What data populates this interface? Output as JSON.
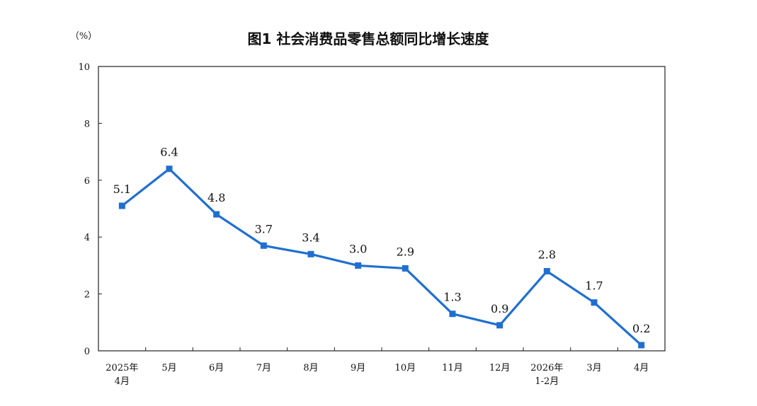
{
  "chart_data": {
    "type": "line",
    "title": "图1  社会消费品零售总额同比增长速度",
    "ylabel": "（%）",
    "xlabel": "",
    "ylim": [
      0,
      10
    ],
    "yticks": [
      0,
      2,
      4,
      6,
      8,
      10
    ],
    "grid": false,
    "categories": [
      [
        "2025年",
        "4月"
      ],
      [
        "5月"
      ],
      [
        "6月"
      ],
      [
        "7月"
      ],
      [
        "8月"
      ],
      [
        "9月"
      ],
      [
        "10月"
      ],
      [
        "11月"
      ],
      [
        "12月"
      ],
      [
        "2026年",
        "1-2月"
      ],
      [
        "3月"
      ],
      [
        "4月"
      ]
    ],
    "series": [
      {
        "values": [
          5.1,
          6.4,
          4.8,
          3.7,
          3.4,
          3.0,
          2.9,
          1.3,
          0.9,
          2.8,
          1.7,
          0.2
        ],
        "labels": [
          "5.1",
          "6.4",
          "4.8",
          "3.7",
          "3.4",
          "3.0",
          "2.9",
          "1.3",
          "0.9",
          "2.8",
          "1.7",
          "0.2"
        ]
      }
    ],
    "colors": {
      "line": "#1f6fd1",
      "marker": "#1f6fd1",
      "axis": "#222222"
    }
  }
}
